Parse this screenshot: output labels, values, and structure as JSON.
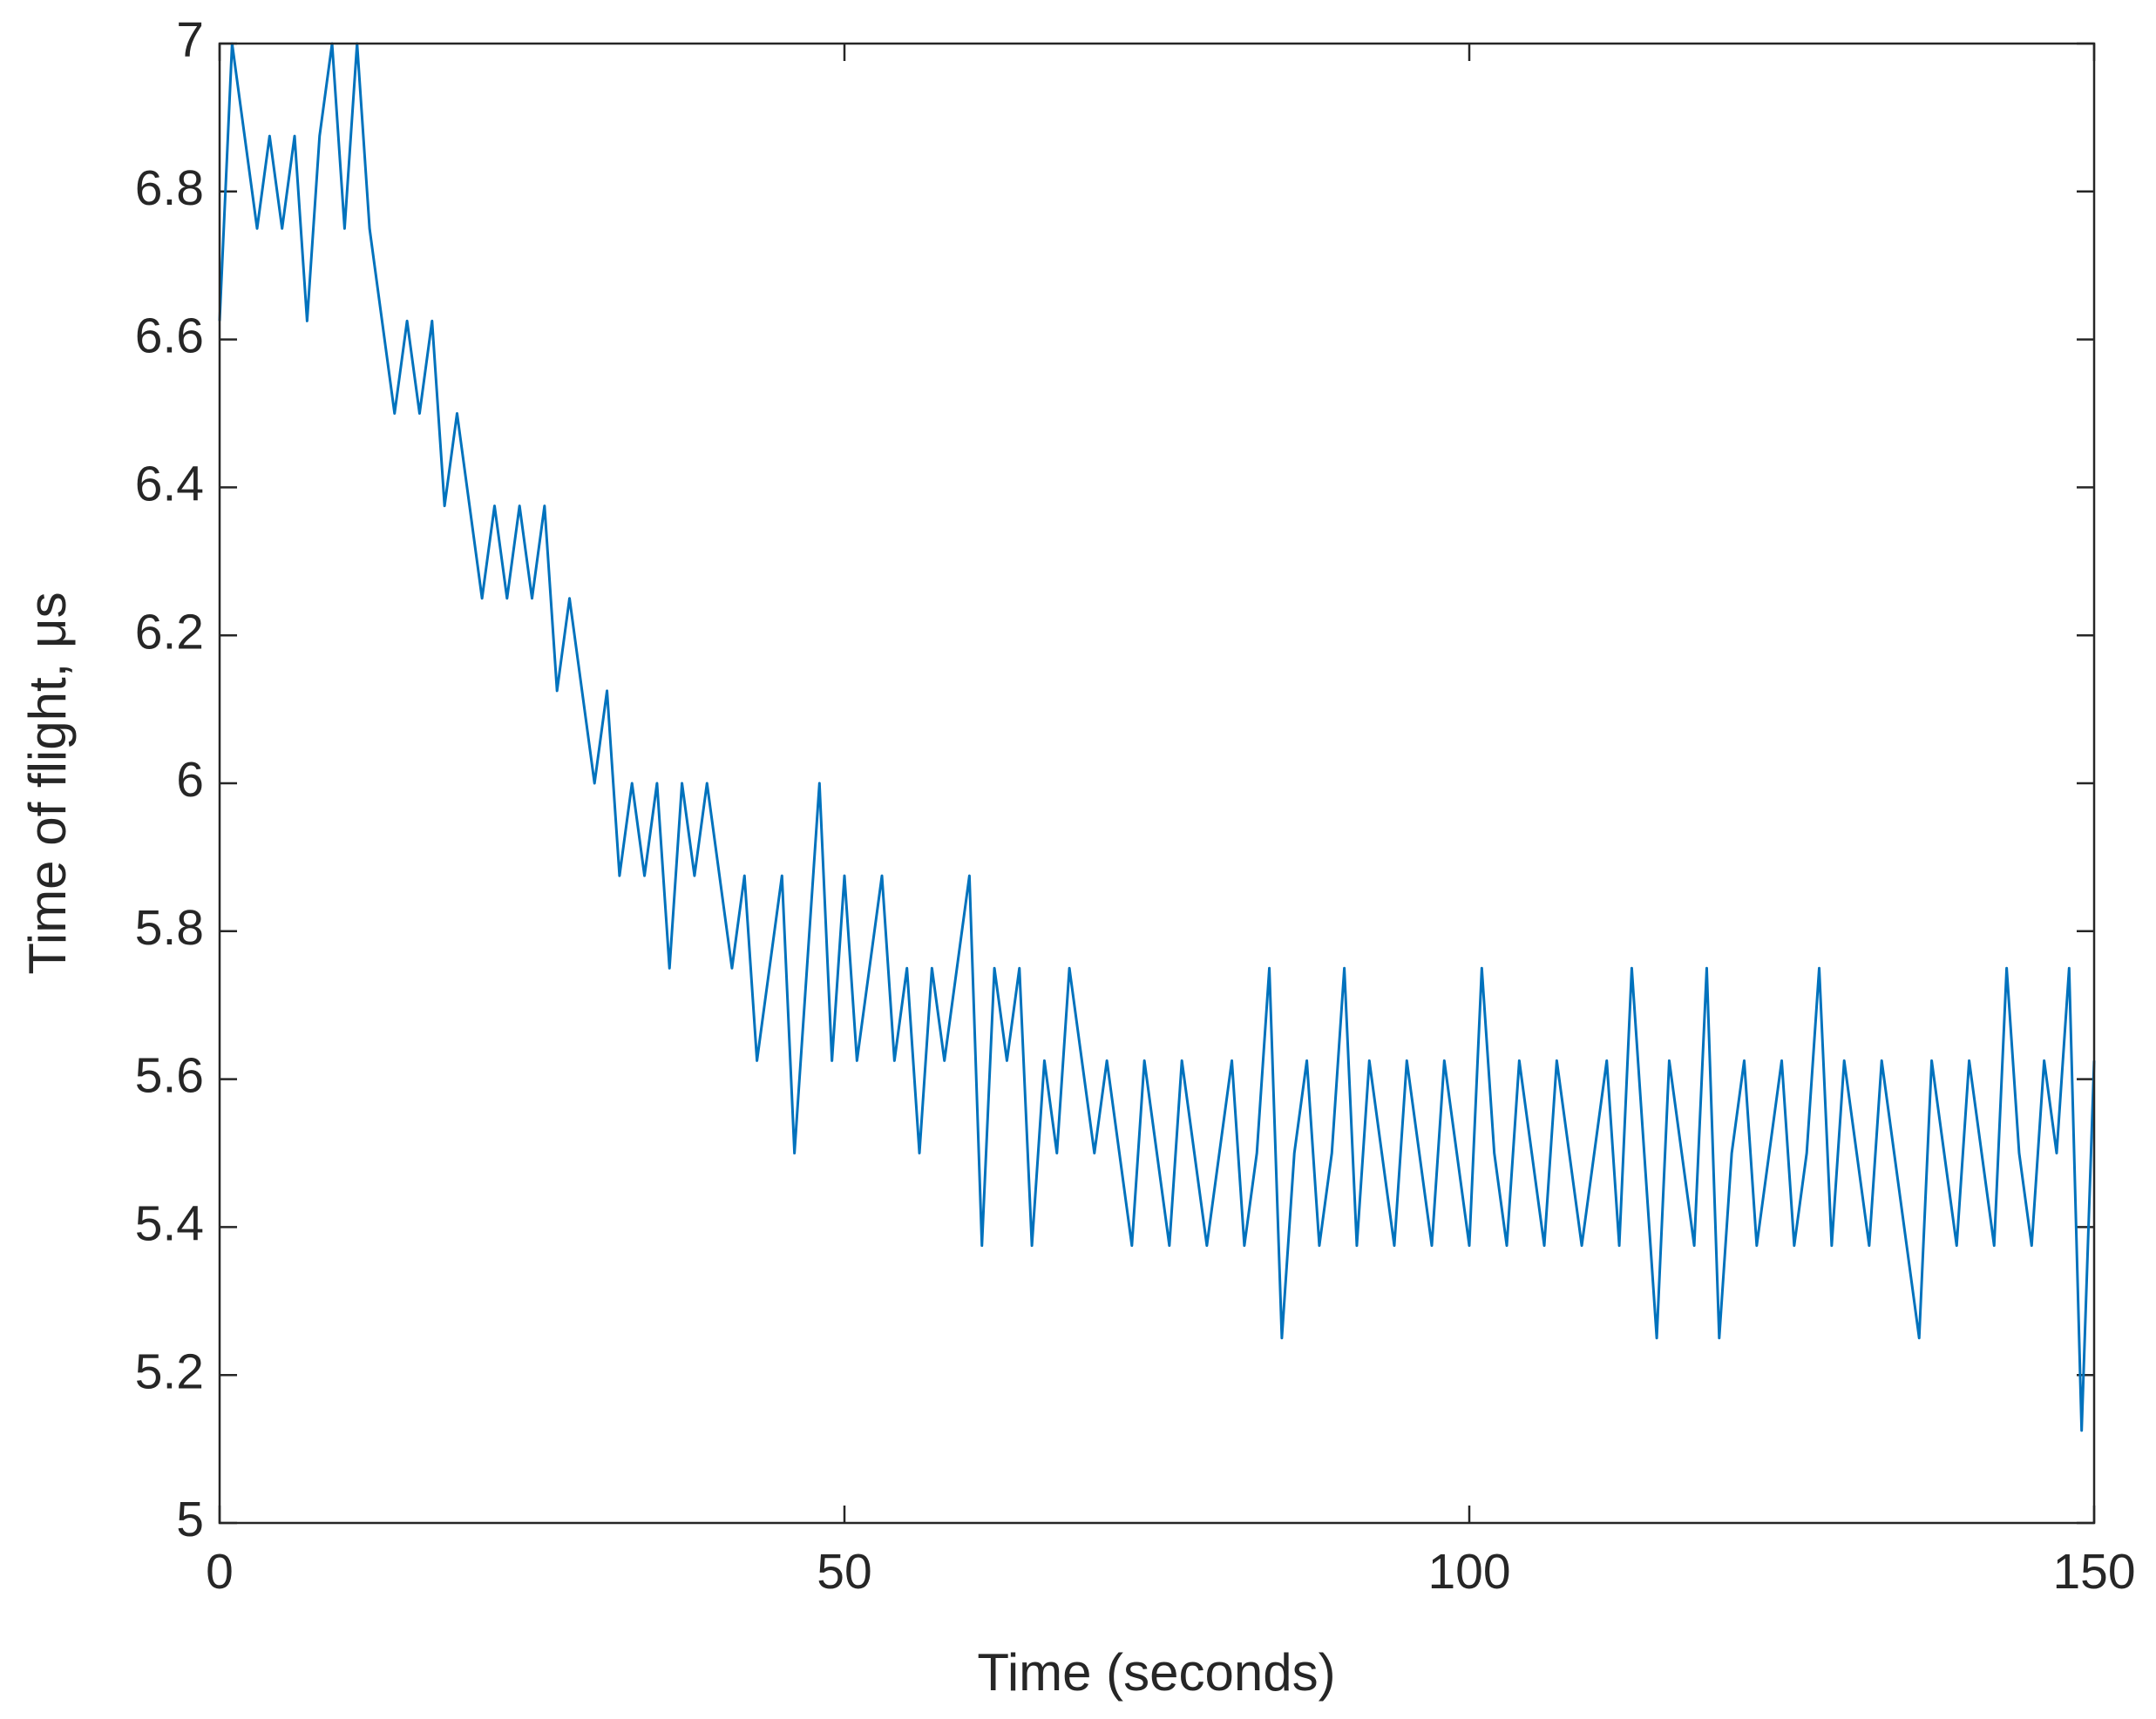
{
  "chart_data": {
    "type": "line",
    "xlabel": "Time (seconds)",
    "ylabel": "Time of flight, μs",
    "xlim": [
      0,
      150
    ],
    "xticks": [
      0,
      50,
      100,
      150
    ],
    "ylim": [
      5,
      7
    ],
    "yticks": [
      5,
      5.2,
      5.4,
      5.6,
      5.8,
      6,
      6.2,
      6.4,
      6.6,
      6.8,
      7
    ],
    "box": true,
    "x": [
      0,
      1,
      2,
      3,
      4,
      5,
      6,
      7,
      8,
      9,
      10,
      11,
      12,
      13,
      14,
      15,
      16,
      17,
      18,
      19,
      20,
      21,
      22,
      23,
      24,
      25,
      26,
      27,
      28,
      29,
      30,
      31,
      32,
      33,
      34,
      35,
      36,
      37,
      38,
      39,
      40,
      41,
      42,
      43,
      44,
      45,
      46,
      47,
      48,
      49,
      50,
      51,
      52,
      53,
      54,
      55,
      56,
      57,
      58,
      59,
      60,
      61,
      62,
      63,
      64,
      65,
      66,
      67,
      68,
      69,
      70,
      71,
      72,
      73,
      74,
      75,
      76,
      77,
      78,
      79,
      80,
      81,
      82,
      83,
      84,
      85,
      86,
      87,
      88,
      89,
      90,
      91,
      92,
      93,
      94,
      95,
      96,
      97,
      98,
      99,
      100,
      101,
      102,
      103,
      104,
      105,
      106,
      107,
      108,
      109,
      110,
      111,
      112,
      113,
      114,
      115,
      116,
      117,
      118,
      119,
      120,
      121,
      122,
      123,
      124,
      125,
      126,
      127,
      128,
      129,
      130,
      131,
      132,
      133,
      134,
      135,
      136,
      137,
      138,
      139,
      140,
      141,
      142,
      143,
      144,
      145,
      146,
      147,
      148,
      149,
      150
    ],
    "series": [
      {
        "color": "#0072bd",
        "values": [
          6.625,
          7,
          6.875,
          6.75,
          6.875,
          6.75,
          6.875,
          6.625,
          6.875,
          7,
          6.75,
          7,
          6.75,
          6.625,
          6.5,
          6.625,
          6.5,
          6.625,
          6.375,
          6.5,
          6.375,
          6.25,
          6.375,
          6.25,
          6.375,
          6.25,
          6.375,
          6.125,
          6.25,
          6.125,
          6.0,
          6.125,
          5.875,
          6.0,
          5.875,
          6.0,
          5.75,
          6.0,
          5.875,
          6.0,
          5.875,
          5.75,
          5.875,
          5.625,
          5.75,
          5.875,
          5.5,
          5.75,
          6.0,
          5.625,
          5.875,
          5.625,
          5.75,
          5.875,
          5.625,
          5.75,
          5.5,
          5.75,
          5.625,
          5.75,
          5.875,
          5.375,
          5.75,
          5.625,
          5.75,
          5.375,
          5.625,
          5.5,
          5.75,
          5.625,
          5.5,
          5.625,
          5.5,
          5.375,
          5.625,
          5.5,
          5.375,
          5.625,
          5.5,
          5.375,
          5.5,
          5.625,
          5.375,
          5.5,
          5.75,
          5.25,
          5.5,
          5.625,
          5.375,
          5.5,
          5.75,
          5.375,
          5.625,
          5.5,
          5.375,
          5.625,
          5.5,
          5.375,
          5.625,
          5.5,
          5.375,
          5.75,
          5.5,
          5.375,
          5.625,
          5.5,
          5.375,
          5.625,
          5.5,
          5.375,
          5.5,
          5.625,
          5.375,
          5.75,
          5.5,
          5.25,
          5.625,
          5.5,
          5.375,
          5.75,
          5.25,
          5.5,
          5.625,
          5.375,
          5.5,
          5.625,
          5.375,
          5.5,
          5.75,
          5.375,
          5.625,
          5.5,
          5.375,
          5.625,
          5.5,
          5.375,
          5.25,
          5.625,
          5.5,
          5.375,
          5.625,
          5.5,
          5.375,
          5.75,
          5.5,
          5.375,
          5.625,
          5.5,
          5.75,
          5.125,
          5.625
        ]
      }
    ]
  }
}
